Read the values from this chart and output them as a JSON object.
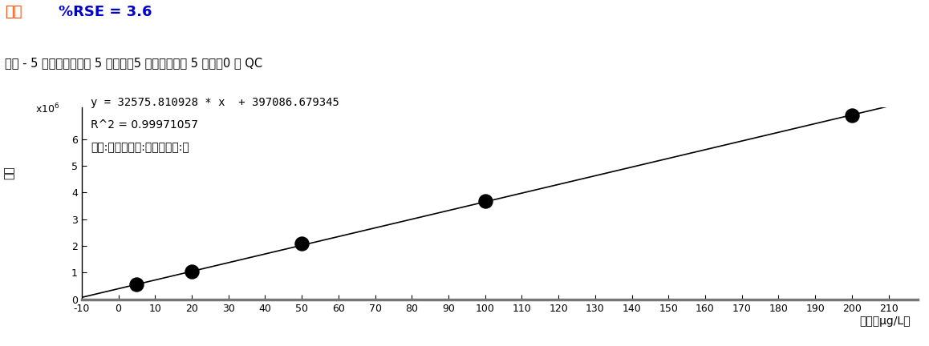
{
  "title_part1": "丙酮",
  "title_part2": "   %RSE = 3.6",
  "title_color1": "#FF4400",
  "title_color2": "#0000CC",
  "subtitle": "丙酮 - 5 个级别，使用了 5 个级别，5 个点，使用了 5 个点，0 个 QC",
  "ylabel": "响应",
  "xlabel": "浓度（μg/L）",
  "annotation_line1": "y = 32575.810928 * x  + 397086.679345",
  "annotation_line2": "R^2 = 0.99971057",
  "annotation_line3": "类型:线性，原点:忽略，权重:无",
  "slope": 32575.810928,
  "intercept": 397086.679345,
  "xdata": [
    5,
    20,
    50,
    100,
    200
  ],
  "ydata": [
    560000,
    1050000,
    2090000,
    3670000,
    6910000
  ],
  "xlim": [
    -10,
    218
  ],
  "ylim": [
    0,
    7200000
  ],
  "xticks": [
    -10,
    0,
    10,
    20,
    30,
    40,
    50,
    60,
    70,
    80,
    90,
    100,
    110,
    120,
    130,
    140,
    150,
    160,
    170,
    180,
    190,
    200,
    210
  ],
  "ytick_vals": [
    0,
    1000000,
    2000000,
    3000000,
    4000000,
    5000000,
    6000000
  ],
  "ytick_labels": [
    "0",
    "1",
    "2",
    "3",
    "4",
    "5",
    "6"
  ],
  "line_x_start": -10,
  "line_x_end": 218,
  "bg_color": "#FFFFFF",
  "dot_color": "#000000",
  "dot_size": 150,
  "line_color": "#000000",
  "line_width": 1.2,
  "fontsize_title": 13,
  "fontsize_subtitle": 10.5,
  "fontsize_annotation": 10,
  "fontsize_axis_label": 10,
  "fontsize_ticks": 9
}
